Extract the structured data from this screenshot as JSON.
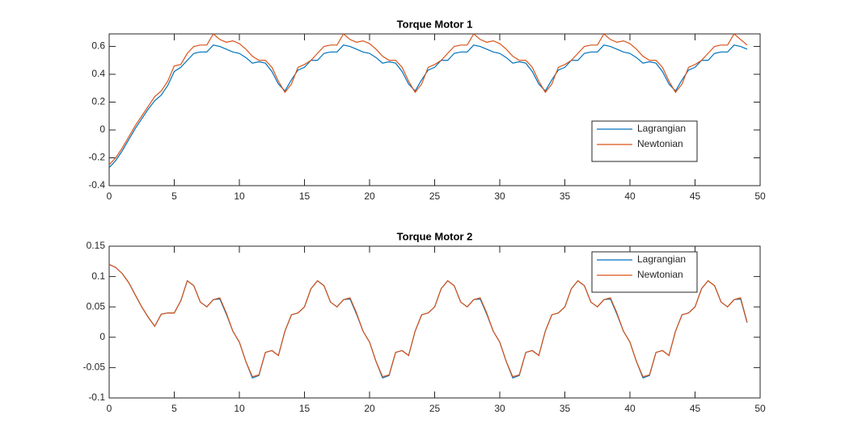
{
  "chart_data": [
    {
      "type": "line",
      "title": "Torque Motor 1",
      "x": [
        0,
        0.5,
        1,
        1.5,
        2,
        2.5,
        3,
        3.5,
        4,
        4.5,
        5,
        5.5,
        6,
        6.5,
        7,
        7.5,
        8,
        8.5,
        9,
        9.5,
        10,
        10.5,
        11,
        11.5,
        12,
        12.5,
        13,
        13.5,
        14,
        14.5,
        15,
        15.5,
        16,
        16.5,
        17,
        17.5,
        18,
        18.5,
        19,
        19.5,
        20,
        20.5,
        21,
        21.5,
        22,
        22.5,
        23,
        23.5,
        24,
        24.5,
        25,
        25.5,
        26,
        26.5,
        27,
        27.5,
        28,
        28.5,
        29,
        29.5,
        30,
        30.5,
        31,
        31.5,
        32,
        32.5,
        33,
        33.5,
        34,
        34.5,
        35,
        35.5,
        36,
        36.5,
        37,
        37.5,
        38,
        38.5,
        39,
        39.5,
        40,
        40.5,
        41,
        41.5,
        42,
        42.5,
        43,
        43.5,
        44,
        44.5,
        45,
        45.5,
        46,
        46.5,
        47,
        47.5,
        48,
        48.5,
        49
      ],
      "series": [
        {
          "name": "Lagrangian",
          "color": "#0072BD",
          "values": [
            -0.27,
            -0.22,
            -0.15,
            -0.07,
            0.01,
            0.08,
            0.15,
            0.21,
            0.25,
            0.32,
            0.42,
            0.45,
            0.5,
            0.55,
            0.56,
            0.56,
            0.61,
            0.6,
            0.58,
            0.56,
            0.55,
            0.52,
            0.48,
            0.49,
            0.48,
            0.42,
            0.33,
            0.28,
            0.36,
            0.43,
            0.45,
            0.5,
            0.5,
            0.55,
            0.56,
            0.56,
            0.61,
            0.6,
            0.58,
            0.56,
            0.55,
            0.52,
            0.48,
            0.49,
            0.48,
            0.42,
            0.33,
            0.28,
            0.36,
            0.43,
            0.45,
            0.5,
            0.5,
            0.55,
            0.56,
            0.56,
            0.61,
            0.6,
            0.58,
            0.56,
            0.55,
            0.52,
            0.48,
            0.49,
            0.48,
            0.42,
            0.33,
            0.28,
            0.36,
            0.43,
            0.45,
            0.5,
            0.5,
            0.55,
            0.56,
            0.56,
            0.61,
            0.6,
            0.58,
            0.56,
            0.55,
            0.52,
            0.48,
            0.49,
            0.48,
            0.42,
            0.33,
            0.28,
            0.36,
            0.43,
            0.45,
            0.5,
            0.5,
            0.55,
            0.56,
            0.56,
            0.61,
            0.6,
            0.58
          ]
        },
        {
          "name": "Newtonian",
          "color": "#D95319",
          "values": [
            -0.25,
            -0.2,
            -0.13,
            -0.05,
            0.03,
            0.1,
            0.17,
            0.24,
            0.28,
            0.35,
            0.46,
            0.47,
            0.55,
            0.6,
            0.61,
            0.61,
            0.69,
            0.65,
            0.63,
            0.64,
            0.62,
            0.58,
            0.53,
            0.5,
            0.5,
            0.45,
            0.35,
            0.27,
            0.33,
            0.45,
            0.47,
            0.5,
            0.55,
            0.6,
            0.61,
            0.61,
            0.69,
            0.65,
            0.63,
            0.64,
            0.62,
            0.58,
            0.53,
            0.5,
            0.5,
            0.45,
            0.35,
            0.27,
            0.33,
            0.45,
            0.47,
            0.5,
            0.55,
            0.6,
            0.61,
            0.61,
            0.69,
            0.65,
            0.63,
            0.64,
            0.62,
            0.58,
            0.53,
            0.5,
            0.5,
            0.45,
            0.35,
            0.27,
            0.33,
            0.45,
            0.47,
            0.5,
            0.55,
            0.6,
            0.61,
            0.61,
            0.69,
            0.65,
            0.63,
            0.64,
            0.62,
            0.58,
            0.53,
            0.5,
            0.5,
            0.45,
            0.35,
            0.27,
            0.33,
            0.45,
            0.47,
            0.5,
            0.55,
            0.6,
            0.61,
            0.61,
            0.69,
            0.65,
            0.61
          ]
        }
      ],
      "xlim": [
        0,
        50
      ],
      "xticks": [
        0,
        5,
        10,
        15,
        20,
        25,
        30,
        35,
        40,
        45,
        50
      ],
      "ylim": [
        -0.4,
        0.69
      ],
      "yticks": [
        -0.4,
        -0.2,
        0,
        0.2,
        0.4,
        0.6
      ],
      "legend": "lower right"
    },
    {
      "type": "line",
      "title": "Torque Motor 2",
      "x": [
        0,
        0.5,
        1,
        1.5,
        2,
        2.5,
        3,
        3.5,
        4,
        4.5,
        5,
        5.5,
        6,
        6.5,
        7,
        7.5,
        8,
        8.5,
        9,
        9.5,
        10,
        10.5,
        11,
        11.5,
        12,
        12.5,
        13,
        13.5,
        14,
        14.5,
        15,
        15.5,
        16,
        16.5,
        17,
        17.5,
        18,
        18.5,
        19,
        19.5,
        20,
        20.5,
        21,
        21.5,
        22,
        22.5,
        23,
        23.5,
        24,
        24.5,
        25,
        25.5,
        26,
        26.5,
        27,
        27.5,
        28,
        28.5,
        29,
        29.5,
        30,
        30.5,
        31,
        31.5,
        32,
        32.5,
        33,
        33.5,
        34,
        34.5,
        35,
        35.5,
        36,
        36.5,
        37,
        37.5,
        38,
        38.5,
        39,
        39.5,
        40,
        40.5,
        41,
        41.5,
        42,
        42.5,
        43,
        43.5,
        44,
        44.5,
        45,
        45.5,
        46,
        46.5,
        47,
        47.5,
        48,
        48.5,
        49
      ],
      "series": [
        {
          "name": "Lagrangian",
          "color": "#0072BD",
          "values": [
            0.12,
            0.115,
            0.105,
            0.09,
            0.07,
            0.05,
            0.033,
            0.018,
            0.038,
            0.04,
            0.04,
            0.06,
            0.093,
            0.085,
            0.058,
            0.05,
            0.062,
            0.063,
            0.038,
            0.01,
            -0.008,
            -0.04,
            -0.067,
            -0.063,
            -0.025,
            -0.022,
            -0.03,
            0.01,
            0.037,
            0.04,
            0.05,
            0.08,
            0.093,
            0.085,
            0.058,
            0.05,
            0.062,
            0.063,
            0.038,
            0.01,
            -0.008,
            -0.04,
            -0.067,
            -0.063,
            -0.025,
            -0.022,
            -0.03,
            0.01,
            0.037,
            0.04,
            0.05,
            0.08,
            0.093,
            0.085,
            0.058,
            0.05,
            0.062,
            0.063,
            0.038,
            0.01,
            -0.008,
            -0.04,
            -0.067,
            -0.063,
            -0.025,
            -0.022,
            -0.03,
            0.01,
            0.037,
            0.04,
            0.05,
            0.08,
            0.093,
            0.085,
            0.058,
            0.05,
            0.062,
            0.063,
            0.038,
            0.01,
            -0.008,
            -0.04,
            -0.067,
            -0.063,
            -0.025,
            -0.022,
            -0.03,
            0.01,
            0.037,
            0.04,
            0.05,
            0.08,
            0.093,
            0.085,
            0.058,
            0.05,
            0.062,
            0.063,
            0.024
          ]
        },
        {
          "name": "Newtonian",
          "color": "#D95319",
          "values": [
            0.12,
            0.115,
            0.105,
            0.09,
            0.07,
            0.05,
            0.033,
            0.018,
            0.038,
            0.04,
            0.04,
            0.06,
            0.093,
            0.085,
            0.058,
            0.05,
            0.062,
            0.065,
            0.04,
            0.01,
            -0.008,
            -0.04,
            -0.065,
            -0.062,
            -0.025,
            -0.022,
            -0.03,
            0.01,
            0.037,
            0.04,
            0.05,
            0.08,
            0.093,
            0.085,
            0.058,
            0.05,
            0.062,
            0.065,
            0.04,
            0.01,
            -0.008,
            -0.04,
            -0.065,
            -0.062,
            -0.025,
            -0.022,
            -0.03,
            0.01,
            0.037,
            0.04,
            0.05,
            0.08,
            0.093,
            0.085,
            0.058,
            0.05,
            0.062,
            0.065,
            0.04,
            0.01,
            -0.008,
            -0.04,
            -0.065,
            -0.062,
            -0.025,
            -0.022,
            -0.03,
            0.01,
            0.037,
            0.04,
            0.05,
            0.08,
            0.093,
            0.085,
            0.058,
            0.05,
            0.062,
            0.065,
            0.04,
            0.01,
            -0.008,
            -0.04,
            -0.065,
            -0.062,
            -0.025,
            -0.022,
            -0.03,
            0.01,
            0.037,
            0.04,
            0.05,
            0.08,
            0.093,
            0.085,
            0.058,
            0.05,
            0.062,
            0.065,
            0.025
          ]
        }
      ],
      "xlim": [
        0,
        50
      ],
      "xticks": [
        0,
        5,
        10,
        15,
        20,
        25,
        30,
        35,
        40,
        45,
        50
      ],
      "ylim": [
        -0.1,
        0.15
      ],
      "yticks": [
        -0.1,
        -0.05,
        0,
        0.05,
        0.1,
        0.15
      ],
      "legend": "upper right"
    }
  ]
}
